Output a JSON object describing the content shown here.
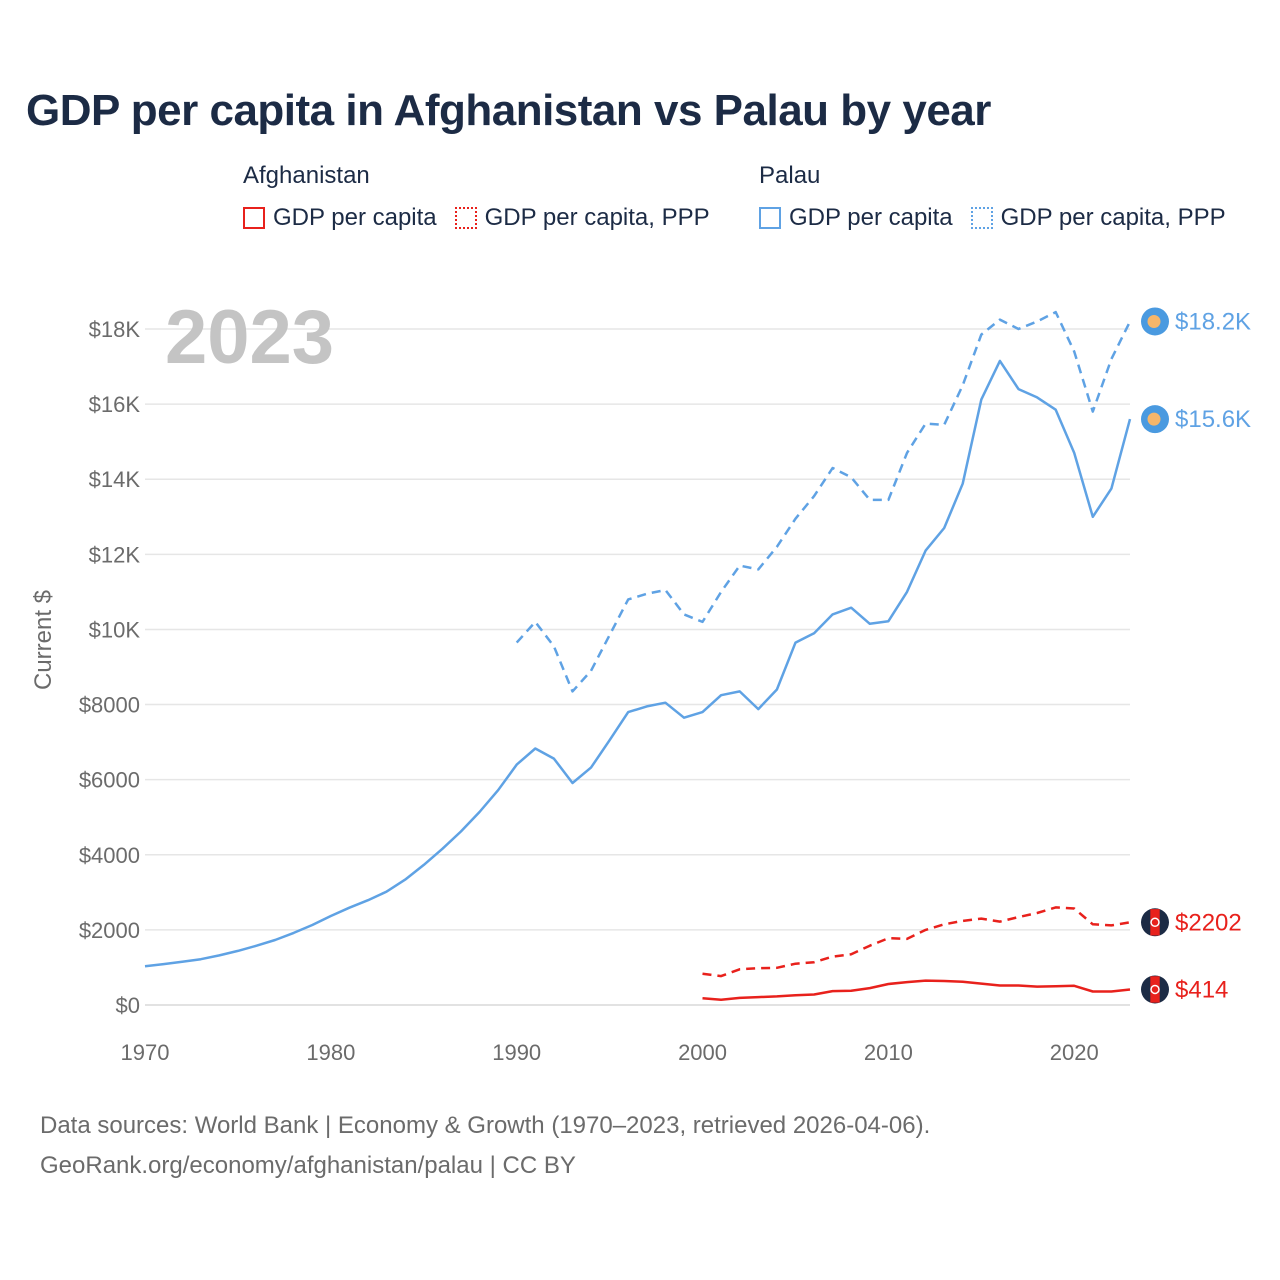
{
  "chart_data": {
    "type": "line",
    "title": "GDP per capita in Afghanistan vs Palau by year",
    "ylabel": "Current $",
    "xlabel": "",
    "xlim": [
      1970,
      2023
    ],
    "ylim": [
      0,
      18000
    ],
    "year_label": "2023",
    "x_ticks": [
      1970,
      1980,
      1990,
      2000,
      2010,
      2020
    ],
    "y_ticks": [
      {
        "value": 0,
        "label": "$0"
      },
      {
        "value": 2000,
        "label": "$2000"
      },
      {
        "value": 4000,
        "label": "$4000"
      },
      {
        "value": 6000,
        "label": "$6000"
      },
      {
        "value": 8000,
        "label": "$8000"
      },
      {
        "value": 10000,
        "label": "$10K"
      },
      {
        "value": 12000,
        "label": "$12K"
      },
      {
        "value": 14000,
        "label": "$14K"
      },
      {
        "value": 16000,
        "label": "$16K"
      },
      {
        "value": 18000,
        "label": "$18K"
      }
    ],
    "legend": [
      {
        "country": "Afghanistan",
        "items": [
          "GDP per capita",
          "GDP per capita, PPP"
        ]
      },
      {
        "country": "Palau",
        "items": [
          "GDP per capita",
          "GDP per capita, PPP"
        ]
      }
    ],
    "series": [
      {
        "name": "Palau GDP per capita, PPP",
        "country": "Palau",
        "dashed": true,
        "color": "#5fa2e4",
        "end_label": "$18.2K",
        "marker": "palau-flag",
        "x": [
          1990,
          1991,
          1992,
          1993,
          1994,
          1995,
          1996,
          1997,
          1998,
          1999,
          2000,
          2001,
          2002,
          2003,
          2004,
          2005,
          2006,
          2007,
          2008,
          2009,
          2010,
          2011,
          2012,
          2013,
          2014,
          2015,
          2016,
          2017,
          2018,
          2019,
          2020,
          2021,
          2022,
          2023
        ],
        "values": [
          9650,
          10200,
          9550,
          8350,
          8900,
          9850,
          10800,
          10950,
          11050,
          10400,
          10200,
          11000,
          11700,
          11600,
          12200,
          12950,
          13550,
          14300,
          14050,
          13450,
          13450,
          14700,
          15480,
          15450,
          16500,
          17850,
          18250,
          18000,
          18200,
          18450,
          17400,
          15800,
          17200,
          18200
        ]
      },
      {
        "name": "Palau GDP per capita",
        "country": "Palau",
        "dashed": false,
        "color": "#5fa2e4",
        "end_label": "$15.6K",
        "marker": "palau-flag",
        "x": [
          1970,
          1971,
          1972,
          1973,
          1974,
          1975,
          1976,
          1977,
          1978,
          1979,
          1980,
          1981,
          1982,
          1983,
          1984,
          1985,
          1986,
          1987,
          1988,
          1989,
          1990,
          1991,
          1992,
          1993,
          1994,
          1995,
          1996,
          1997,
          1998,
          1999,
          2000,
          2001,
          2002,
          2003,
          2004,
          2005,
          2006,
          2007,
          2008,
          2009,
          2010,
          2011,
          2012,
          2013,
          2014,
          2015,
          2016,
          2017,
          2018,
          2019,
          2020,
          2021,
          2022,
          2023
        ],
        "values": [
          1030,
          1090,
          1150,
          1220,
          1320,
          1440,
          1580,
          1730,
          1920,
          2130,
          2370,
          2590,
          2790,
          3020,
          3340,
          3730,
          4160,
          4620,
          5140,
          5720,
          6400,
          6830,
          6560,
          5910,
          6320,
          7050,
          7800,
          7950,
          8050,
          7650,
          7800,
          8250,
          8350,
          7880,
          8400,
          9650,
          9900,
          10400,
          10580,
          10150,
          10220,
          11000,
          12100,
          12700,
          13880,
          16120,
          17150,
          16400,
          16180,
          15850,
          14700,
          13000,
          13750,
          15600
        ]
      },
      {
        "name": "Afghanistan GDP per capita, PPP",
        "country": "Afghanistan",
        "dashed": true,
        "color": "#e8211c",
        "end_label": "$2202",
        "marker": "afghanistan-flag",
        "x": [
          2000,
          2001,
          2002,
          2003,
          2004,
          2005,
          2006,
          2007,
          2008,
          2009,
          2010,
          2011,
          2012,
          2013,
          2014,
          2015,
          2016,
          2017,
          2018,
          2019,
          2020,
          2021,
          2022,
          2023
        ],
        "values": [
          830,
          770,
          950,
          980,
          990,
          1100,
          1140,
          1290,
          1350,
          1580,
          1780,
          1760,
          2000,
          2150,
          2240,
          2300,
          2220,
          2340,
          2450,
          2600,
          2570,
          2150,
          2120,
          2202
        ]
      },
      {
        "name": "Afghanistan GDP per capita",
        "country": "Afghanistan",
        "dashed": false,
        "color": "#e8211c",
        "end_label": "$414",
        "marker": "afghanistan-flag",
        "x": [
          2000,
          2001,
          2002,
          2003,
          2004,
          2005,
          2006,
          2007,
          2008,
          2009,
          2010,
          2011,
          2012,
          2013,
          2014,
          2015,
          2016,
          2017,
          2018,
          2019,
          2020,
          2021,
          2022,
          2023
        ],
        "values": [
          180,
          140,
          190,
          210,
          230,
          260,
          280,
          370,
          380,
          450,
          560,
          610,
          650,
          640,
          620,
          570,
          520,
          520,
          490,
          500,
          510,
          360,
          360,
          414
        ]
      }
    ]
  },
  "footer": {
    "line1": "Data sources: World Bank | Economy & Growth (1970–2023, retrieved 2026-04-06).",
    "line2": "GeoRank.org/economy/afghanistan/palau | CC BY"
  }
}
